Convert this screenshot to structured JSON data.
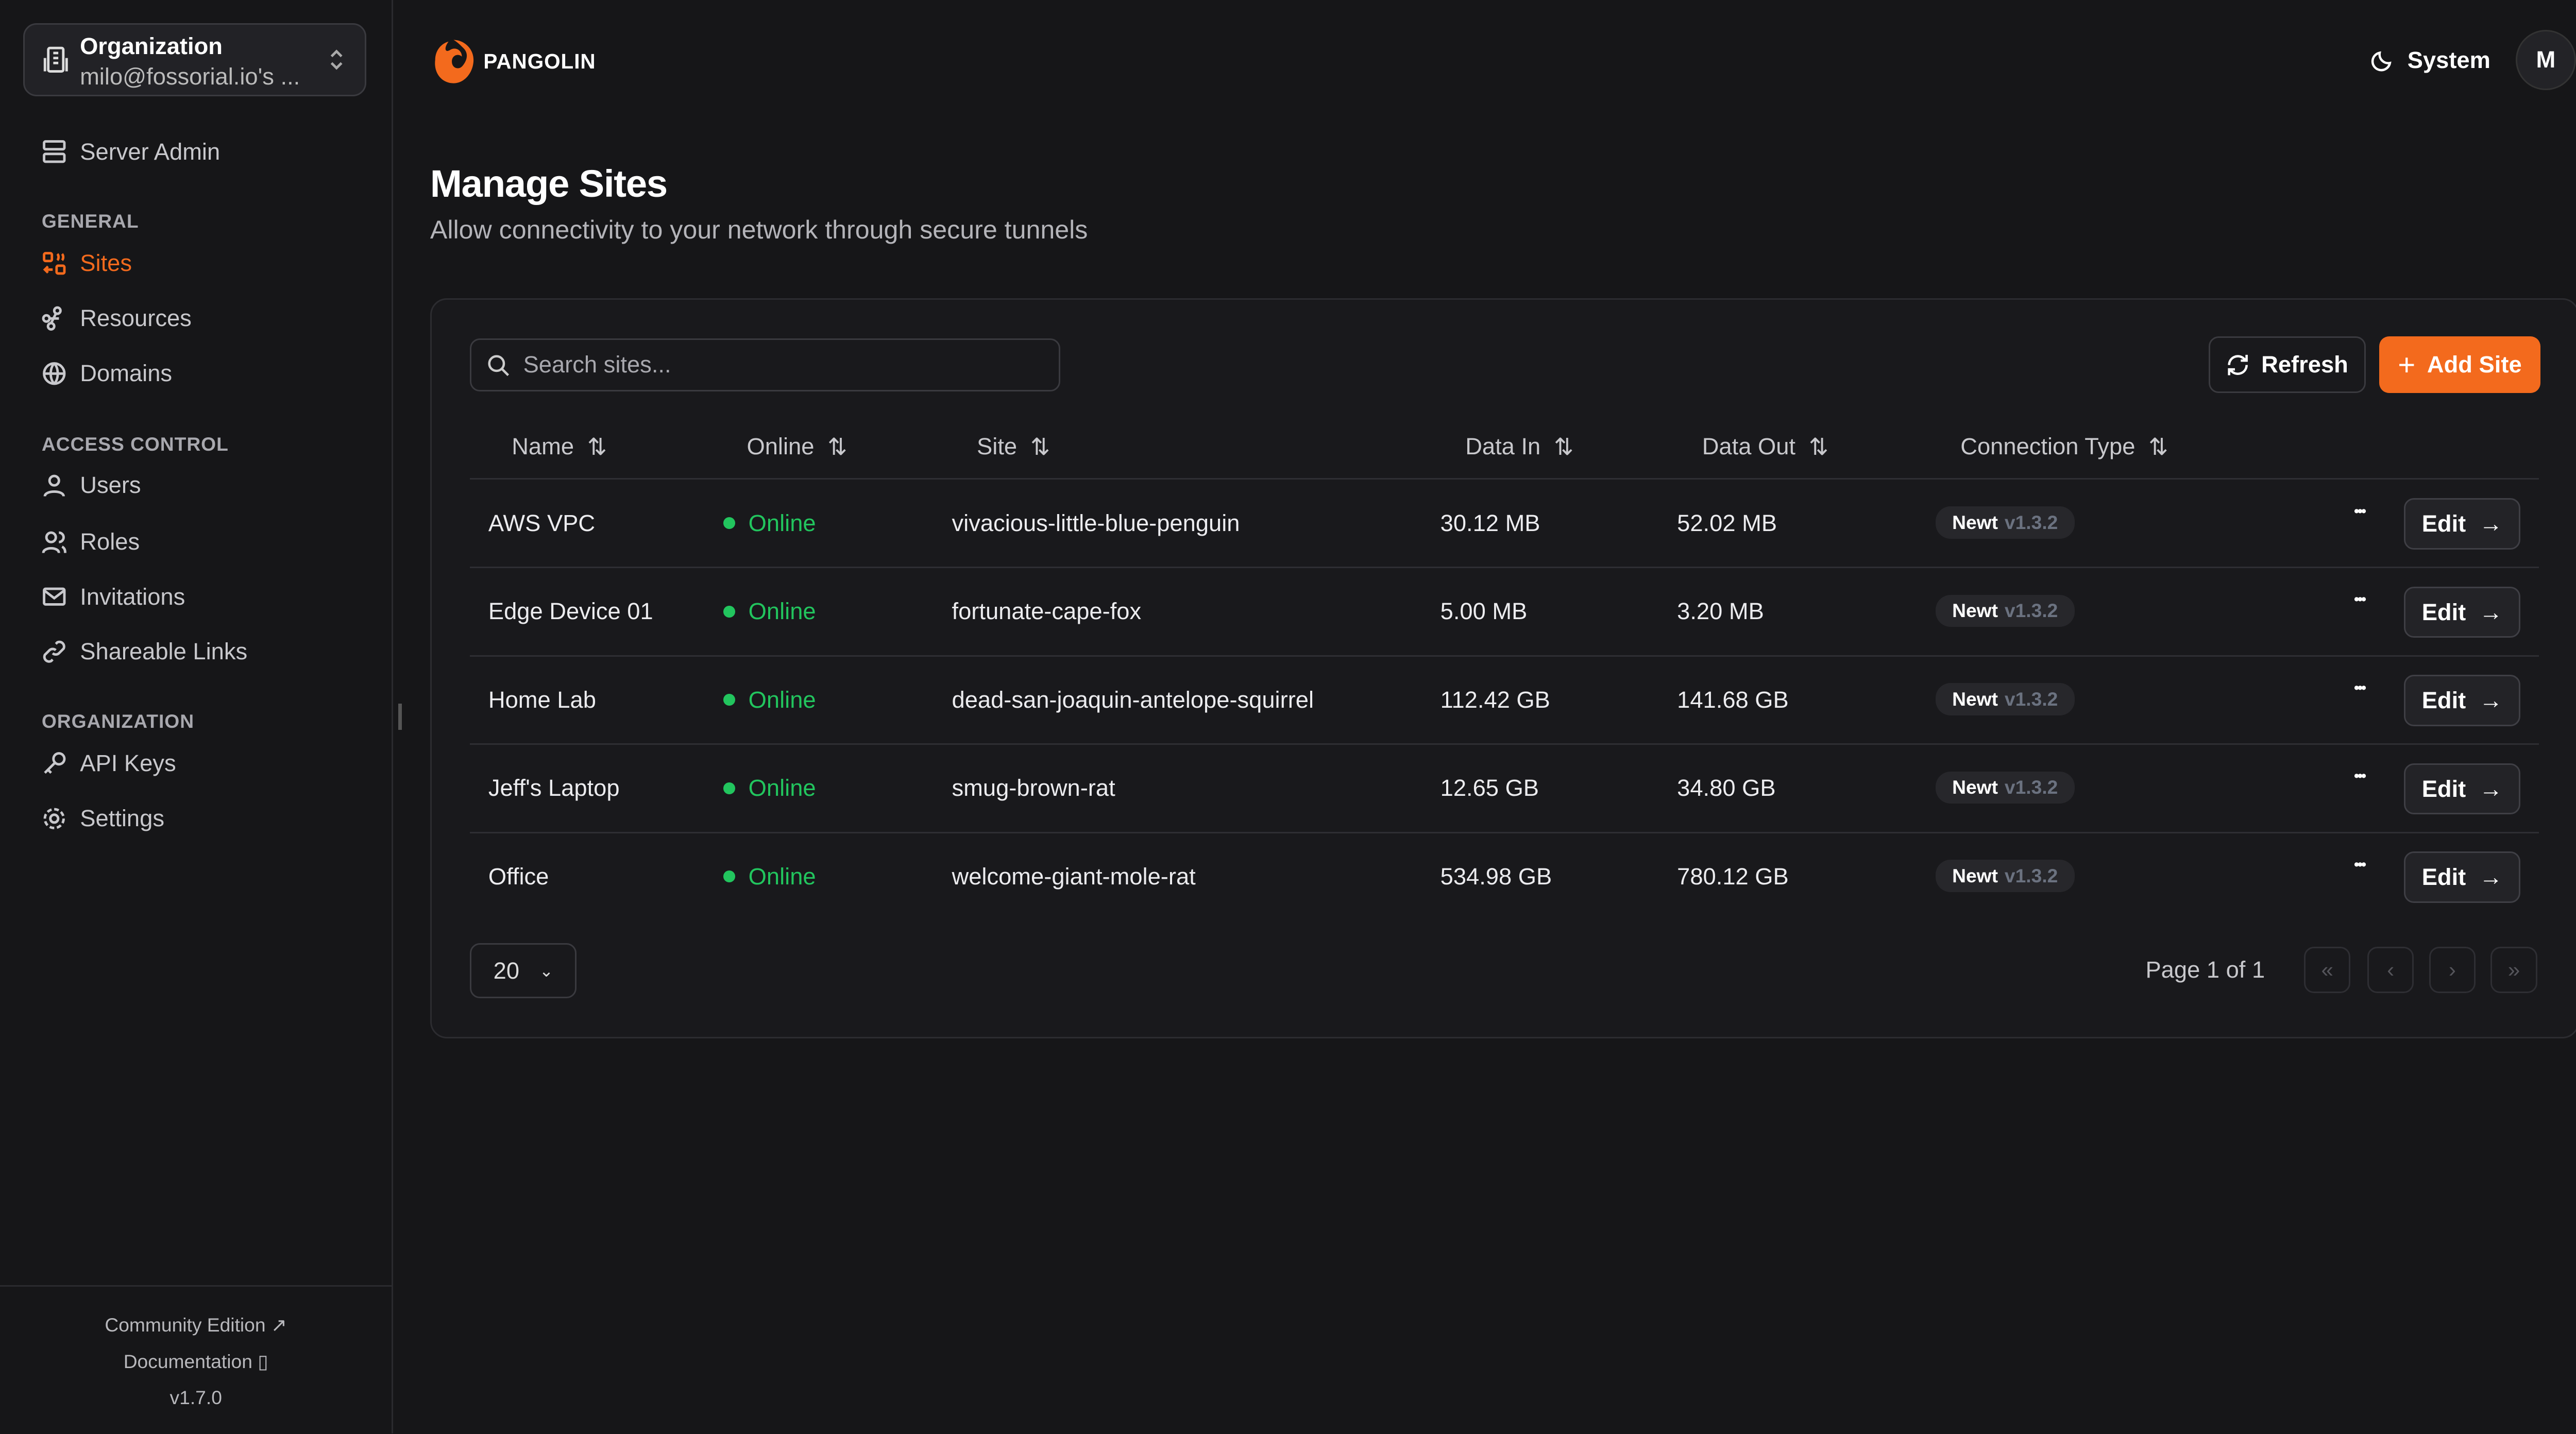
{
  "org": {
    "label": "Organization",
    "value": "milo@fossorial.io's ..."
  },
  "sidebar": {
    "server_admin": "Server Admin",
    "sections": [
      "GENERAL",
      "ACCESS CONTROL",
      "ORGANIZATION"
    ],
    "items": [
      "Sites",
      "Resources",
      "Domains",
      "Users",
      "Roles",
      "Invitations",
      "Shareable Links",
      "API Keys",
      "Settings"
    ],
    "active": "Sites",
    "footer": {
      "community": "Community Edition",
      "docs": "Documentation",
      "version": "v1.7.0"
    }
  },
  "header": {
    "brand": "PANGOLIN",
    "theme": "System",
    "avatar": "M"
  },
  "page": {
    "title": "Manage Sites",
    "subtitle": "Allow connectivity to your network through secure tunnels"
  },
  "toolbar": {
    "search_placeholder": "Search sites...",
    "refresh": "Refresh",
    "add": "Add Site"
  },
  "table": {
    "columns": [
      "Name",
      "Online",
      "Site",
      "Data In",
      "Data Out",
      "Connection Type"
    ],
    "rows": [
      {
        "name": "AWS VPC",
        "status": "Online",
        "site": "vivacious-little-blue-penguin",
        "in": "30.12 MB",
        "out": "52.02 MB",
        "type": "Newt",
        "ver": "v1.3.2"
      },
      {
        "name": "Edge Device 01",
        "status": "Online",
        "site": "fortunate-cape-fox",
        "in": "5.00 MB",
        "out": "3.20 MB",
        "type": "Newt",
        "ver": "v1.3.2"
      },
      {
        "name": "Home Lab",
        "status": "Online",
        "site": "dead-san-joaquin-antelope-squirrel",
        "in": "112.42 GB",
        "out": "141.68 GB",
        "type": "Newt",
        "ver": "v1.3.2"
      },
      {
        "name": "Jeff's Laptop",
        "status": "Online",
        "site": "smug-brown-rat",
        "in": "12.65 GB",
        "out": "34.80 GB",
        "type": "Newt",
        "ver": "v1.3.2"
      },
      {
        "name": "Office",
        "status": "Online",
        "site": "welcome-giant-mole-rat",
        "in": "534.98 GB",
        "out": "780.12 GB",
        "type": "Newt",
        "ver": "v1.3.2"
      }
    ],
    "edit": "Edit"
  },
  "pagination": {
    "page_size": "20",
    "page_info": "Page 1 of 1"
  },
  "colors": {
    "accent": "#f36a1d",
    "online": "#22c55e",
    "background": "#161618"
  }
}
